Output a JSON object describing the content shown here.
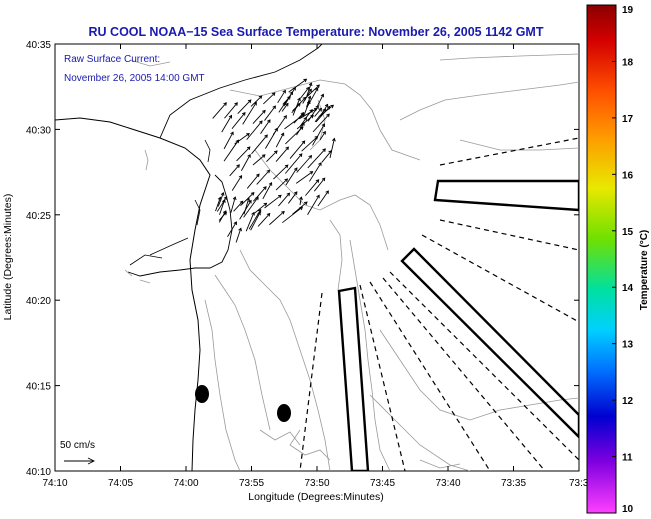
{
  "chart_data": {
    "type": "map",
    "title": "RU COOL  NOAA−15  Sea Surface Temperature:  November 26, 2005 1142 GMT",
    "annotation_line1": "Raw Surface Current:",
    "annotation_line2": "November 26, 2005 14:00 GMT",
    "xlabel": "Longitude (Degrees:Minutes)",
    "ylabel": "Latitude (Degrees:Minutes)",
    "x_ticks": [
      "74:10",
      "74:05",
      "74:00",
      "73:55",
      "73:50",
      "73:45",
      "73:40",
      "73:35",
      "73:3"
    ],
    "x_range_minutes_west": [
      10,
      -30
    ],
    "y_ticks": [
      "40:35",
      "40:30",
      "40:25",
      "40:20",
      "40:15",
      "40:10"
    ],
    "y_range_minutes": [
      35,
      10
    ],
    "colorbar": {
      "label": "Temperature (°C)",
      "ticks": [
        "19",
        "18",
        "17",
        "16",
        "15",
        "14",
        "13",
        "12",
        "11",
        "10"
      ],
      "range": [
        10,
        19
      ]
    },
    "scale_label": "50 cm/s"
  }
}
